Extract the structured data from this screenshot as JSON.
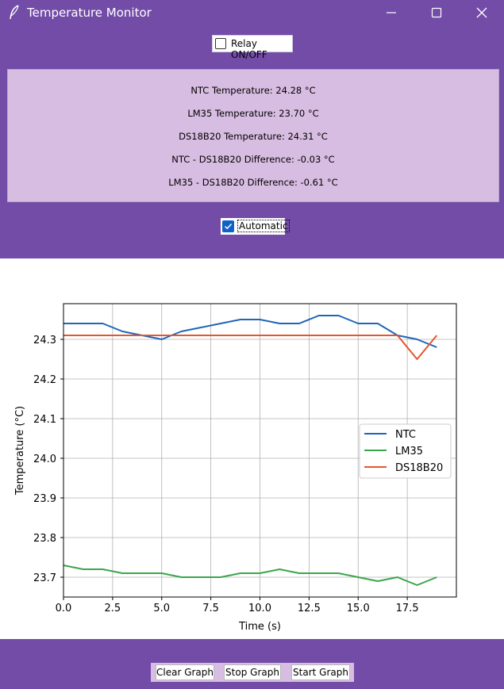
{
  "window": {
    "title": "Temperature Monitor",
    "icon": "feather-icon",
    "controls": [
      "minimize-icon",
      "maximize-icon",
      "close-icon"
    ]
  },
  "relay": {
    "label": "Relay ON/OFF",
    "checked": false
  },
  "readings": {
    "ntc": "NTC Temperature: 24.28 °C",
    "lm35": "LM35 Temperature: 23.70 °C",
    "ds18b20": "DS18B20 Temperature: 24.31 °C",
    "ntc_diff": "NTC - DS18B20 Difference: -0.03 °C",
    "lm35_diff": "LM35 - DS18B20 Difference: -0.61 °C"
  },
  "automatic": {
    "label": "Automatic",
    "checked": true
  },
  "buttons": {
    "clear": "Clear Graph",
    "stop": "Stop Graph",
    "start": "Start Graph"
  },
  "colors": {
    "accent": "#734ca8",
    "panel": "#d8bde2",
    "ntc": "#1f65b8",
    "lm35": "#3aa64c",
    "ds18b20": "#e4572e"
  },
  "chart_data": {
    "type": "line",
    "title": "",
    "xlabel": "Time (s)",
    "ylabel": "Temperature (°C)",
    "xlim": [
      0,
      20
    ],
    "ylim": [
      23.65,
      24.39
    ],
    "xticks": [
      0.0,
      2.5,
      5.0,
      7.5,
      10.0,
      12.5,
      15.0,
      17.5
    ],
    "xtick_labels": [
      "0.0",
      "2.5",
      "5.0",
      "7.5",
      "10.0",
      "12.5",
      "15.0",
      "17.5"
    ],
    "yticks": [
      23.7,
      23.8,
      23.9,
      24.0,
      24.1,
      24.2,
      24.3
    ],
    "ytick_labels": [
      "23.7",
      "23.8",
      "23.9",
      "24.0",
      "24.1",
      "24.2",
      "24.3"
    ],
    "grid": true,
    "legend_position": "center-right",
    "x": [
      0,
      1,
      2,
      3,
      4,
      5,
      6,
      7,
      8,
      9,
      10,
      11,
      12,
      13,
      14,
      15,
      16,
      17,
      18,
      19
    ],
    "series": [
      {
        "name": "NTC",
        "color": "#1f65b8",
        "values": [
          24.34,
          24.34,
          24.34,
          24.32,
          24.31,
          24.3,
          24.32,
          24.33,
          24.34,
          24.35,
          24.35,
          24.34,
          24.34,
          24.36,
          24.36,
          24.34,
          24.34,
          24.31,
          24.3,
          24.28
        ]
      },
      {
        "name": "LM35",
        "color": "#3aa64c",
        "values": [
          23.73,
          23.72,
          23.72,
          23.71,
          23.71,
          23.71,
          23.7,
          23.7,
          23.7,
          23.71,
          23.71,
          23.72,
          23.71,
          23.71,
          23.71,
          23.7,
          23.69,
          23.7,
          23.68,
          23.7
        ]
      },
      {
        "name": "DS18B20",
        "color": "#e4572e",
        "values": [
          24.31,
          24.31,
          24.31,
          24.31,
          24.31,
          24.31,
          24.31,
          24.31,
          24.31,
          24.31,
          24.31,
          24.31,
          24.31,
          24.31,
          24.31,
          24.31,
          24.31,
          24.31,
          24.25,
          24.31
        ]
      }
    ]
  }
}
